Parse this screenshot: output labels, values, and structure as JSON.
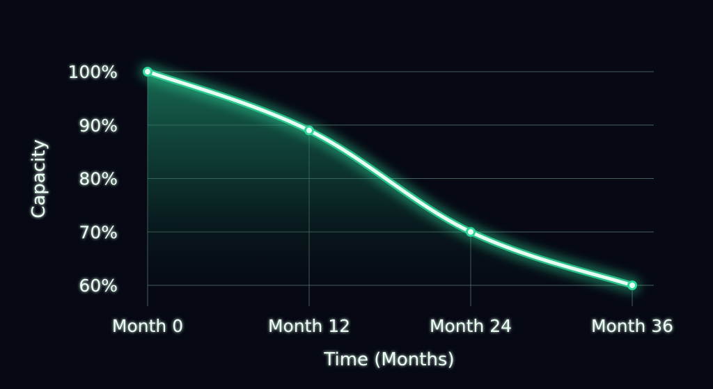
{
  "colors": {
    "background": "#060913",
    "line": "#e6fff2",
    "glow": "#2fd89a",
    "area": "#1f8f6c",
    "grid": "#5f7c74",
    "text": "#eafff4"
  },
  "chart_data": {
    "type": "line",
    "title": "",
    "xlabel": "Time (Months)",
    "ylabel": "Capacity",
    "x": [
      0,
      12,
      24,
      36
    ],
    "x_tick_labels": [
      "Month 0",
      "Month 12",
      "Month 24",
      "Month 36"
    ],
    "y_ticks": [
      60,
      70,
      80,
      90,
      100
    ],
    "y_tick_labels": [
      "60%",
      "70%",
      "80%",
      "90%",
      "100%"
    ],
    "ylim": [
      60,
      100
    ],
    "xlim": [
      0,
      36
    ],
    "grid": true,
    "legend": "none",
    "series": [
      {
        "x": [
          0,
          12,
          24,
          36
        ],
        "values": [
          100,
          89,
          70,
          60
        ]
      }
    ]
  }
}
